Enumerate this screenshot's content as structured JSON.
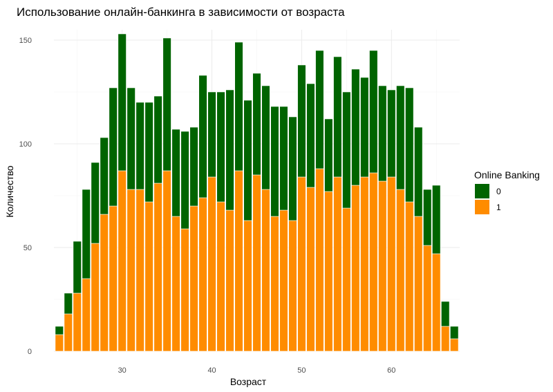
{
  "chart_data": {
    "type": "bar",
    "stacked": true,
    "title": "Использование онлайн-банкинга в зависимости от возраста",
    "xlabel": "Возраст",
    "ylabel": "Количество",
    "legend_title": "Online Banking",
    "legend_position": "right",
    "grid": true,
    "xlim": [
      22.4,
      67.6
    ],
    "ylim": [
      0,
      155
    ],
    "x_ticks": [
      30,
      40,
      50,
      60
    ],
    "y_ticks": [
      0,
      50,
      100,
      150
    ],
    "x": [
      23,
      24,
      25,
      26,
      27,
      28,
      29,
      30,
      31,
      32,
      33,
      34,
      35,
      36,
      37,
      38,
      39,
      40,
      41,
      42,
      43,
      44,
      45,
      46,
      47,
      48,
      49,
      50,
      51,
      52,
      53,
      54,
      55,
      56,
      57,
      58,
      59,
      60,
      61,
      62,
      63,
      64,
      65,
      66,
      67
    ],
    "series": [
      {
        "name": "0",
        "color": "#006400",
        "values": [
          4,
          10,
          25,
          43,
          39,
          37,
          57,
          66,
          49,
          42,
          48,
          42,
          64,
          42,
          47,
          38,
          59,
          41,
          53,
          58,
          62,
          58,
          49,
          50,
          53,
          50,
          50,
          54,
          50,
          57,
          35,
          58,
          56,
          56,
          48,
          59,
          46,
          42,
          50,
          55,
          43,
          27,
          33,
          12,
          6
        ]
      },
      {
        "name": "1",
        "color": "#ff8c00",
        "values": [
          8,
          18,
          28,
          35,
          52,
          66,
          70,
          87,
          78,
          78,
          72,
          81,
          87,
          65,
          59,
          70,
          74,
          84,
          72,
          68,
          87,
          63,
          85,
          78,
          65,
          68,
          63,
          84,
          79,
          88,
          77,
          84,
          69,
          80,
          84,
          86,
          82,
          84,
          78,
          72,
          65,
          51,
          47,
          12,
          6
        ]
      }
    ]
  }
}
